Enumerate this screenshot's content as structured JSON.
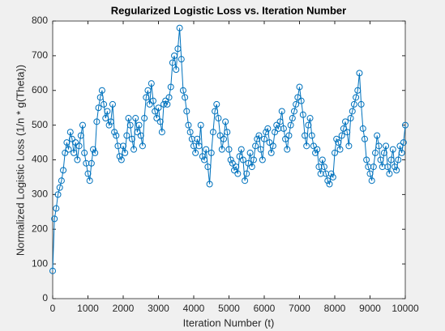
{
  "chart_data": {
    "type": "line",
    "title": "Regularized Logistic Loss vs. Iteration Number",
    "x_label": "Iteration Number (t)",
    "y_label": "Normalized Logistic Loss (1/n * g(Theta))",
    "x": [
      0,
      50,
      100,
      150,
      200,
      250,
      300,
      350,
      400,
      450,
      500,
      550,
      600,
      650,
      700,
      750,
      800,
      850,
      900,
      950,
      1000,
      1050,
      1100,
      1150,
      1200,
      1250,
      1300,
      1350,
      1400,
      1450,
      1500,
      1550,
      1600,
      1650,
      1700,
      1750,
      1800,
      1850,
      1900,
      1950,
      2000,
      2050,
      2100,
      2150,
      2200,
      2250,
      2300,
      2350,
      2400,
      2450,
      2500,
      2550,
      2600,
      2650,
      2700,
      2750,
      2800,
      2850,
      2900,
      2950,
      3000,
      3050,
      3100,
      3150,
      3200,
      3250,
      3300,
      3350,
      3400,
      3450,
      3500,
      3550,
      3600,
      3650,
      3700,
      3750,
      3800,
      3850,
      3900,
      3950,
      4000,
      4050,
      4100,
      4150,
      4200,
      4250,
      4300,
      4350,
      4400,
      4450,
      4500,
      4550,
      4600,
      4650,
      4700,
      4750,
      4800,
      4850,
      4900,
      4950,
      5000,
      5050,
      5100,
      5150,
      5200,
      5250,
      5300,
      5350,
      5400,
      5450,
      5500,
      5550,
      5600,
      5650,
      5700,
      5750,
      5800,
      5850,
      5900,
      5950,
      6000,
      6050,
      6100,
      6150,
      6200,
      6250,
      6300,
      6350,
      6400,
      6450,
      6500,
      6550,
      6600,
      6650,
      6700,
      6750,
      6800,
      6850,
      6900,
      6950,
      7000,
      7050,
      7100,
      7150,
      7200,
      7250,
      7300,
      7350,
      7400,
      7450,
      7500,
      7550,
      7600,
      7650,
      7700,
      7750,
      7800,
      7850,
      7900,
      7950,
      8000,
      8050,
      8100,
      8150,
      8200,
      8250,
      8300,
      8350,
      8400,
      8450,
      8500,
      8550,
      8600,
      8650,
      8700,
      8750,
      8800,
      8850,
      8900,
      8950,
      9000,
      9050,
      9100,
      9150,
      9200,
      9250,
      9300,
      9350,
      9400,
      9450,
      9500,
      9550,
      9600,
      9650,
      9700,
      9750,
      9800,
      9850,
      9900,
      9950,
      10000
    ],
    "values": [
      80,
      230,
      260,
      300,
      320,
      340,
      370,
      420,
      450,
      430,
      480,
      460,
      420,
      450,
      400,
      440,
      470,
      500,
      420,
      390,
      360,
      340,
      390,
      430,
      420,
      510,
      550,
      580,
      600,
      560,
      520,
      540,
      500,
      510,
      560,
      480,
      470,
      440,
      410,
      400,
      440,
      420,
      470,
      520,
      500,
      460,
      430,
      520,
      480,
      500,
      470,
      440,
      520,
      580,
      600,
      560,
      620,
      570,
      540,
      520,
      550,
      510,
      480,
      560,
      570,
      560,
      580,
      610,
      680,
      700,
      660,
      720,
      780,
      690,
      600,
      580,
      540,
      500,
      480,
      460,
      440,
      420,
      460,
      440,
      500,
      410,
      400,
      430,
      380,
      330,
      420,
      480,
      540,
      560,
      520,
      470,
      430,
      460,
      510,
      480,
      430,
      400,
      390,
      370,
      380,
      360,
      410,
      430,
      400,
      340,
      360,
      390,
      420,
      380,
      400,
      440,
      460,
      470,
      430,
      400,
      460,
      480,
      490,
      450,
      420,
      440,
      480,
      500,
      490,
      510,
      540,
      490,
      460,
      430,
      470,
      500,
      520,
      540,
      560,
      580,
      610,
      570,
      530,
      470,
      440,
      500,
      520,
      470,
      440,
      420,
      430,
      380,
      360,
      400,
      380,
      360,
      340,
      330,
      360,
      350,
      420,
      460,
      450,
      430,
      470,
      490,
      510,
      480,
      440,
      520,
      540,
      560,
      580,
      600,
      650,
      560,
      490,
      460,
      400,
      380,
      360,
      340,
      380,
      420,
      470,
      440,
      400,
      380,
      420,
      440,
      380,
      360,
      400,
      430,
      380,
      370,
      400,
      440,
      420,
      450,
      500
    ],
    "color": "#0072bd",
    "marker": "circle",
    "xlim": [
      0,
      10000
    ],
    "xticks": [
      0,
      1000,
      2000,
      3000,
      4000,
      5000,
      6000,
      7000,
      8000,
      9000,
      10000
    ],
    "ylim": [
      0,
      800
    ],
    "yticks": [
      0,
      100,
      200,
      300,
      400,
      500,
      600,
      700,
      800
    ]
  }
}
